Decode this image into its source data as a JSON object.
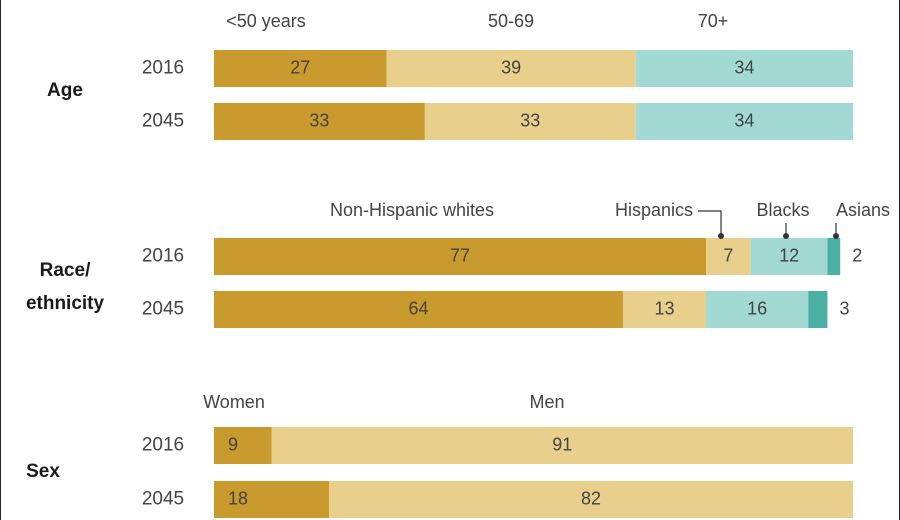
{
  "colors": {
    "dark_gold": "#c99a2e",
    "light_gold": "#e8cf8c",
    "light_teal": "#a2d9d3",
    "dark_teal": "#4ab0a4",
    "text": "#444444"
  },
  "chart_data": [
    {
      "type": "bar",
      "orientation": "horizontal",
      "stacked": true,
      "group_label": "Age",
      "categories": [
        "2016",
        "2045"
      ],
      "series": [
        {
          "name": "<50 years",
          "values": [
            27,
            33
          ]
        },
        {
          "name": "50-69",
          "values": [
            39,
            33
          ]
        },
        {
          "name": "70+",
          "values": [
            34,
            34
          ]
        }
      ]
    },
    {
      "type": "bar",
      "orientation": "horizontal",
      "stacked": true,
      "group_label": "Race/ ethnicity",
      "categories": [
        "2016",
        "2045"
      ],
      "series": [
        {
          "name": "Non-Hispanic whites",
          "values": [
            77,
            64
          ]
        },
        {
          "name": "Hispanics",
          "values": [
            7,
            13
          ]
        },
        {
          "name": "Blacks",
          "values": [
            12,
            16
          ]
        },
        {
          "name": "Asians",
          "values": [
            2,
            3
          ]
        }
      ]
    },
    {
      "type": "bar",
      "orientation": "horizontal",
      "stacked": true,
      "group_label": "Sex",
      "categories": [
        "2016",
        "2045"
      ],
      "series": [
        {
          "name": "Women",
          "values": [
            9,
            18
          ]
        },
        {
          "name": "Men",
          "values": [
            91,
            82
          ]
        }
      ]
    }
  ]
}
